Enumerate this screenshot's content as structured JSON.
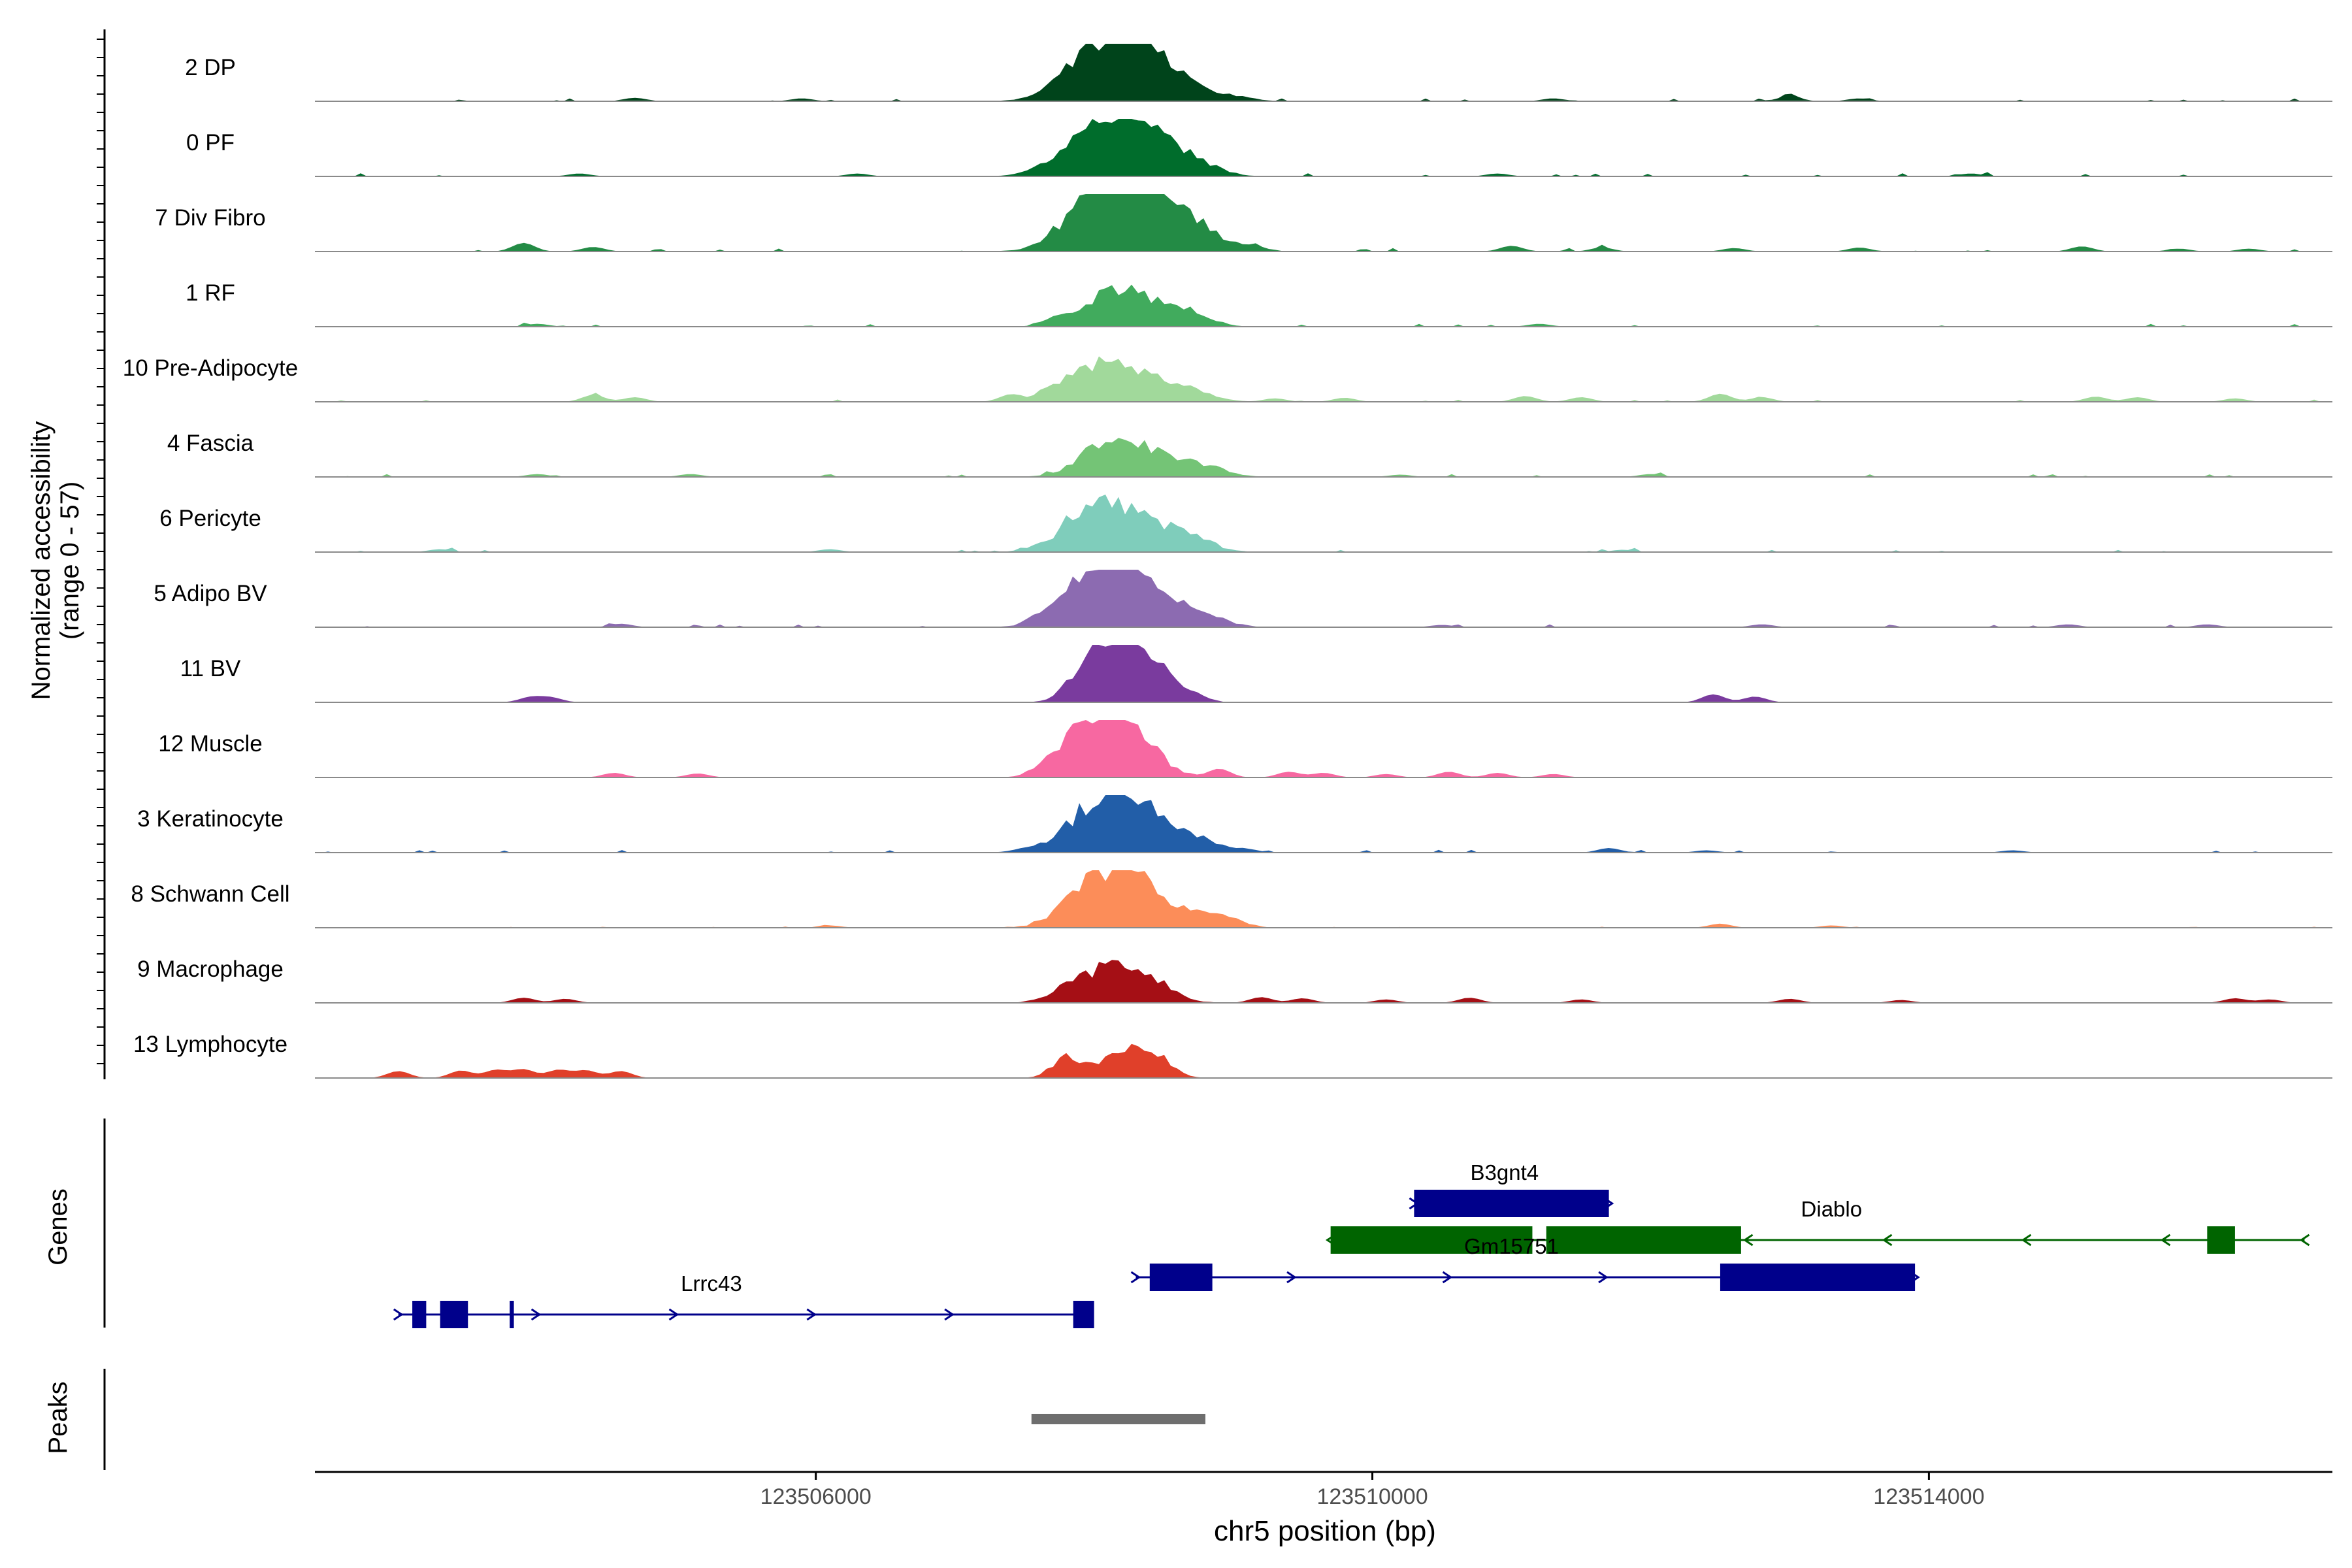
{
  "chart_data": {
    "type": "area",
    "title": "",
    "ylabel_line1": "Normalized accessibility",
    "ylabel_line2": "(range 0 - 57)",
    "xlabel": "chr5 position (bp)",
    "xlim": [
      123502400,
      123516900
    ],
    "xticks": [
      {
        "value": 123506000,
        "label": "123506000"
      },
      {
        "value": 123510000,
        "label": "123510000"
      },
      {
        "value": 123514000,
        "label": "123514000"
      }
    ],
    "panel_labels": {
      "genes": "Genes",
      "peaks": "Peaks"
    },
    "tracks": [
      {
        "label": "2 DP",
        "color": "#00441b",
        "noise": 0.05,
        "peaks": [
          [
            123508100,
            1.0,
            260
          ],
          [
            123508350,
            0.5,
            220
          ],
          [
            123508700,
            0.18,
            150
          ],
          [
            123509050,
            0.08,
            120
          ]
        ],
        "blips": [
          [
            123504700,
            0.06
          ],
          [
            123505900,
            0.05
          ],
          [
            123511300,
            0.05
          ],
          [
            123513000,
            0.09
          ],
          [
            123513500,
            0.05
          ]
        ]
      },
      {
        "label": "0 PF",
        "color": "#006d2c",
        "noise": 0.06,
        "peaks": [
          [
            123508100,
            0.95,
            270
          ],
          [
            123508450,
            0.4,
            220
          ],
          [
            123508800,
            0.12,
            150
          ]
        ],
        "blips": [
          [
            123504300,
            0.05
          ],
          [
            123506300,
            0.05
          ],
          [
            123510900,
            0.05
          ],
          [
            123514300,
            0.05
          ]
        ]
      },
      {
        "label": "7 Div Fibro",
        "color": "#238b45",
        "noise": 0.06,
        "peaks": [
          [
            123508050,
            1.0,
            240
          ],
          [
            123508400,
            0.9,
            230
          ],
          [
            123508700,
            0.3,
            180
          ],
          [
            123509100,
            0.1,
            120
          ]
        ],
        "blips": [
          [
            123503900,
            0.15
          ],
          [
            123504400,
            0.08
          ],
          [
            123511000,
            0.1
          ],
          [
            123511650,
            0.07
          ],
          [
            123512600,
            0.06
          ],
          [
            123513500,
            0.07
          ],
          [
            123515100,
            0.09
          ],
          [
            123515800,
            0.05
          ],
          [
            123516300,
            0.05
          ]
        ]
      },
      {
        "label": "1 RF",
        "color": "#41ab5d",
        "noise": 0.05,
        "peaks": [
          [
            123508100,
            0.5,
            200
          ],
          [
            123508350,
            0.35,
            200
          ],
          [
            123508700,
            0.2,
            150
          ]
        ],
        "blips": [
          [
            123504000,
            0.05
          ],
          [
            123507700,
            0.1
          ],
          [
            123511200,
            0.05
          ]
        ]
      },
      {
        "label": "10 Pre-Adipocyte",
        "color": "#a1d99b",
        "noise": 0.05,
        "peaks": [
          [
            123508000,
            0.5,
            220
          ],
          [
            123508300,
            0.35,
            230
          ],
          [
            123508700,
            0.18,
            160
          ]
        ],
        "blips": [
          [
            123504400,
            0.12
          ],
          [
            123504700,
            0.08
          ],
          [
            123507400,
            0.12
          ],
          [
            123507700,
            0.09
          ],
          [
            123509300,
            0.06
          ],
          [
            123509800,
            0.07
          ],
          [
            123511100,
            0.1
          ],
          [
            123511500,
            0.08
          ],
          [
            123512500,
            0.14
          ],
          [
            123512800,
            0.08
          ],
          [
            123515200,
            0.09
          ],
          [
            123515500,
            0.08
          ],
          [
            123516200,
            0.06
          ]
        ]
      },
      {
        "label": "4 Fascia",
        "color": "#74c476",
        "noise": 0.05,
        "peaks": [
          [
            123508100,
            0.55,
            200
          ],
          [
            123508400,
            0.35,
            200
          ],
          [
            123508800,
            0.18,
            160
          ]
        ],
        "blips": [
          [
            123504000,
            0.05
          ],
          [
            123505100,
            0.05
          ],
          [
            123510200,
            0.04
          ],
          [
            123512000,
            0.05
          ]
        ]
      },
      {
        "label": "6 Pericyte",
        "color": "#7fcdbb",
        "noise": 0.05,
        "peaks": [
          [
            123508000,
            0.75,
            220
          ],
          [
            123508350,
            0.45,
            220
          ],
          [
            123508700,
            0.2,
            160
          ]
        ],
        "blips": [
          [
            123503300,
            0.05
          ],
          [
            123506100,
            0.05
          ],
          [
            123511800,
            0.04
          ]
        ]
      },
      {
        "label": "5 Adipo BV",
        "color": "#8c6bb1",
        "noise": 0.05,
        "peaks": [
          [
            123508050,
            0.95,
            240
          ],
          [
            123508400,
            0.45,
            230
          ],
          [
            123508800,
            0.15,
            160
          ]
        ],
        "blips": [
          [
            123504600,
            0.06
          ],
          [
            123507600,
            0.09
          ],
          [
            123510500,
            0.04
          ],
          [
            123512800,
            0.05
          ],
          [
            123515000,
            0.05
          ],
          [
            123516000,
            0.05
          ]
        ]
      },
      {
        "label": "11 BV",
        "color": "#7a3b9e",
        "noise": 0.0,
        "peaks": [
          [
            123507950,
            0.5,
            140
          ],
          [
            123508150,
            0.95,
            140
          ],
          [
            123508400,
            0.6,
            130
          ],
          [
            123508650,
            0.2,
            120
          ]
        ],
        "blips": [
          [
            123503950,
            0.09
          ],
          [
            123504100,
            0.08
          ],
          [
            123512450,
            0.14
          ],
          [
            123512750,
            0.1
          ]
        ]
      },
      {
        "label": "12 Muscle",
        "color": "#f768a1",
        "noise": 0.0,
        "peaks": [
          [
            123508000,
            0.9,
            200
          ],
          [
            123508300,
            0.6,
            180
          ],
          [
            123507700,
            0.15,
            120
          ]
        ],
        "blips": [
          [
            123504550,
            0.08
          ],
          [
            123505150,
            0.07
          ],
          [
            123508900,
            0.15
          ],
          [
            123509400,
            0.1
          ],
          [
            123509650,
            0.08
          ],
          [
            123510100,
            0.06
          ],
          [
            123510550,
            0.1
          ],
          [
            123510900,
            0.08
          ],
          [
            123511300,
            0.06
          ]
        ]
      },
      {
        "label": "3 Keratinocyte",
        "color": "#225ea8",
        "noise": 0.05,
        "peaks": [
          [
            123508100,
            1.0,
            250
          ],
          [
            123508450,
            0.35,
            220
          ],
          [
            123508800,
            0.12,
            150
          ]
        ],
        "blips": [
          [
            123507500,
            0.04
          ],
          [
            123509100,
            0.05
          ],
          [
            123511700,
            0.08
          ],
          [
            123512400,
            0.04
          ],
          [
            123514600,
            0.04
          ]
        ]
      },
      {
        "label": "8 Schwann Cell",
        "color": "#fc8d59",
        "noise": 0.02,
        "peaks": [
          [
            123508050,
            0.9,
            220
          ],
          [
            123508400,
            0.5,
            200
          ],
          [
            123508800,
            0.2,
            130
          ],
          [
            123509000,
            0.12,
            110
          ]
        ],
        "blips": [
          [
            123506100,
            0.04
          ],
          [
            123512500,
            0.07
          ],
          [
            123513300,
            0.04
          ]
        ]
      },
      {
        "label": "9 Macrophage",
        "color": "#a50f15",
        "noise": 0.0,
        "peaks": [
          [
            123508100,
            0.55,
            180
          ],
          [
            123508400,
            0.35,
            170
          ],
          [
            123507800,
            0.2,
            150
          ]
        ],
        "blips": [
          [
            123503900,
            0.09
          ],
          [
            123504200,
            0.07
          ],
          [
            123509200,
            0.1
          ],
          [
            123509500,
            0.08
          ],
          [
            123510100,
            0.06
          ],
          [
            123510700,
            0.09
          ],
          [
            123511500,
            0.06
          ],
          [
            123513000,
            0.07
          ],
          [
            123513800,
            0.05
          ],
          [
            123516200,
            0.08
          ],
          [
            123516450,
            0.06
          ]
        ]
      },
      {
        "label": "13 Lymphocyte",
        "color": "#e0402a",
        "noise": 0.0,
        "peaks": [
          [
            123507800,
            0.35,
            100
          ],
          [
            123508200,
            0.45,
            160
          ],
          [
            123508450,
            0.3,
            120
          ]
        ],
        "blips": [
          [
            123503000,
            0.12
          ],
          [
            123503450,
            0.13
          ],
          [
            123503700,
            0.14
          ],
          [
            123503900,
            0.15
          ],
          [
            123504150,
            0.14
          ],
          [
            123504350,
            0.13
          ],
          [
            123504600,
            0.12
          ]
        ]
      }
    ],
    "genes": [
      {
        "name": "B3gnt4",
        "strand": "+",
        "color": "#00008b",
        "start": 123510300,
        "end": 123511700,
        "row": 0,
        "label_pos": 123510950,
        "exons": [
          [
            123510300,
            123511700
          ]
        ]
      },
      {
        "name": "Diablo",
        "strand": "-",
        "color": "#006400",
        "start": 123509700,
        "end": 123516700,
        "row": 1,
        "label_pos": 123513300,
        "exons": [
          [
            123509700,
            123511150
          ],
          [
            123511250,
            123512650
          ],
          [
            123516000,
            123516200
          ]
        ]
      },
      {
        "name": "Gm15751",
        "strand": "+",
        "color": "#00008b",
        "start": 123508300,
        "end": 123513900,
        "row": 2,
        "label_pos": 123511000,
        "exons": [
          [
            123508400,
            123508850
          ],
          [
            123512500,
            123513900
          ]
        ]
      },
      {
        "name": "Lrrc43",
        "strand": "+",
        "color": "#00008b",
        "start": 123503000,
        "end": 123507950,
        "row": 3,
        "label_pos": 123505250,
        "exons": [
          [
            123503100,
            123503200
          ],
          [
            123503300,
            123503500
          ],
          [
            123503800,
            123503830
          ],
          [
            123507850,
            123508000
          ]
        ]
      }
    ],
    "peaks": [
      [
        123507550,
        123508800
      ]
    ]
  }
}
